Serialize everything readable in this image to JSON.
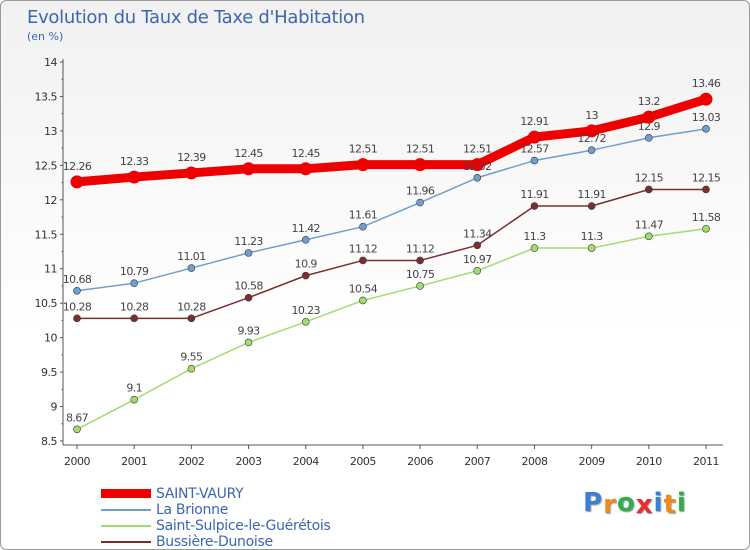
{
  "chart_data": {
    "type": "line",
    "title": "Evolution du Taux de Taxe d'Habitation",
    "subtitle": "(en %)",
    "x": [
      "2000",
      "2001",
      "2002",
      "2003",
      "2004",
      "2005",
      "2006",
      "2007",
      "2008",
      "2009",
      "2010",
      "2011"
    ],
    "ylim": [
      8.5,
      14
    ],
    "yticks": [
      "8.5",
      "9",
      "9.5",
      "10",
      "10.5",
      "11",
      "11.5",
      "12",
      "12.5",
      "13",
      "13.5",
      "14"
    ],
    "grid": false,
    "legend_position": "bottom-left",
    "series": [
      {
        "name": "SAINT-VAURY",
        "color": "#ee0000",
        "values": [
          12.26,
          12.33,
          12.39,
          12.45,
          12.45,
          12.51,
          12.51,
          12.51,
          12.91,
          13,
          13.2,
          13.46
        ],
        "labels": [
          "12.26",
          "12.33",
          "12.39",
          "12.45",
          "12.45",
          "12.51",
          "12.51",
          "12.51",
          "12.91",
          "13",
          "13.2",
          "13.46"
        ]
      },
      {
        "name": "La Brionne",
        "color": "#6f9fcc",
        "values": [
          10.68,
          10.79,
          11.01,
          11.23,
          11.42,
          11.61,
          11.96,
          12.32,
          12.57,
          12.72,
          12.9,
          13.03
        ],
        "labels": [
          "10.68",
          "10.79",
          "11.01",
          "11.23",
          "11.42",
          "11.61",
          "11.96",
          "12.32",
          "12.57",
          "12.72",
          "12.9",
          "13.03"
        ]
      },
      {
        "name": "Saint-Sulpice-le-Guérétois",
        "color": "#a2db6e",
        "values": [
          8.67,
          9.1,
          9.55,
          9.93,
          10.23,
          10.54,
          10.75,
          10.97,
          11.3,
          11.3,
          11.47,
          11.58
        ],
        "labels": [
          "8.67",
          "9.1",
          "9.55",
          "9.93",
          "10.23",
          "10.54",
          "10.75",
          "10.97",
          "11.3",
          "11.3",
          "11.47",
          "11.58"
        ]
      },
      {
        "name": "Bussière-Dunoise",
        "color": "#7a2e2e",
        "values": [
          10.28,
          10.28,
          10.28,
          10.58,
          10.9,
          11.12,
          11.12,
          11.34,
          11.91,
          11.91,
          12.15,
          12.15
        ],
        "labels": [
          "10.28",
          "10.28",
          "10.28",
          "10.58",
          "10.9",
          "11.12",
          "11.12",
          "11.34",
          "11.91",
          "11.91",
          "12.15",
          "12.15"
        ]
      }
    ]
  },
  "logo": {
    "letters": [
      "P",
      "r",
      "o",
      "x",
      "i",
      "t",
      "i"
    ],
    "colors": [
      "#3a7fd4",
      "#ef8a1a",
      "#2fae4a",
      "#e52e2e",
      "#3a7fd4",
      "#ef8a1a",
      "#2fae4a"
    ]
  }
}
